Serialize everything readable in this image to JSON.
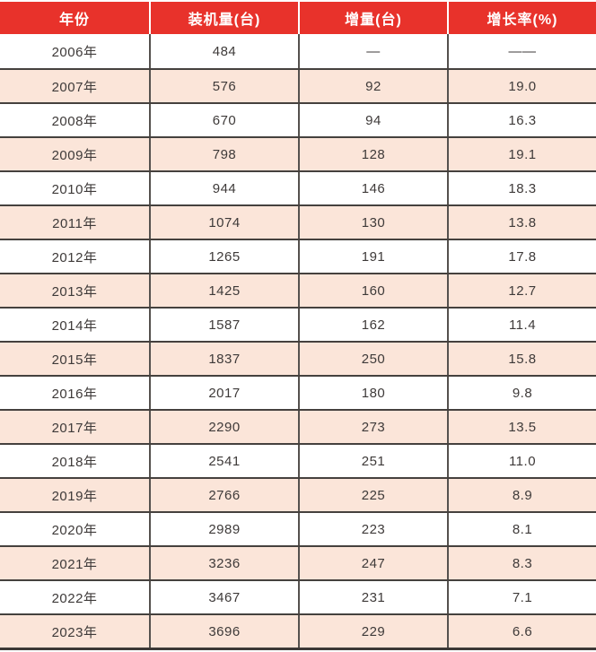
{
  "chart_data": {
    "type": "table",
    "columns": [
      "年份",
      "装机量(台)",
      "增量(台)",
      "增长率(%)"
    ],
    "rows": [
      [
        "2006年",
        "484",
        "—",
        "——"
      ],
      [
        "2007年",
        "576",
        "92",
        "19.0"
      ],
      [
        "2008年",
        "670",
        "94",
        "16.3"
      ],
      [
        "2009年",
        "798",
        "128",
        "19.1"
      ],
      [
        "2010年",
        "944",
        "146",
        "18.3"
      ],
      [
        "2011年",
        "1074",
        "130",
        "13.8"
      ],
      [
        "2012年",
        "1265",
        "191",
        "17.8"
      ],
      [
        "2013年",
        "1425",
        "160",
        "12.7"
      ],
      [
        "2014年",
        "1587",
        "162",
        "11.4"
      ],
      [
        "2015年",
        "1837",
        "250",
        "15.8"
      ],
      [
        "2016年",
        "2017",
        "180",
        "9.8"
      ],
      [
        "2017年",
        "2290",
        "273",
        "13.5"
      ],
      [
        "2018年",
        "2541",
        "251",
        "11.0"
      ],
      [
        "2019年",
        "2766",
        "225",
        "8.9"
      ],
      [
        "2020年",
        "2989",
        "223",
        "8.1"
      ],
      [
        "2021年",
        "3236",
        "247",
        "8.3"
      ],
      [
        "2022年",
        "3467",
        "231",
        "7.1"
      ],
      [
        "2023年",
        "3696",
        "229",
        "6.6"
      ]
    ],
    "categories": [
      "2006年",
      "2007年",
      "2008年",
      "2009年",
      "2010年",
      "2011年",
      "2012年",
      "2013年",
      "2014年",
      "2015年",
      "2016年",
      "2017年",
      "2018年",
      "2019年",
      "2020年",
      "2021年",
      "2022年",
      "2023年"
    ],
    "series": [
      {
        "name": "装机量(台)",
        "values": [
          484,
          576,
          670,
          798,
          944,
          1074,
          1265,
          1425,
          1587,
          1837,
          2017,
          2290,
          2541,
          2766,
          2989,
          3236,
          3467,
          3696
        ]
      },
      {
        "name": "增量(台)",
        "values": [
          null,
          92,
          94,
          128,
          146,
          130,
          191,
          160,
          162,
          250,
          180,
          273,
          251,
          225,
          223,
          247,
          231,
          229
        ]
      },
      {
        "name": "增长率(%)",
        "values": [
          null,
          19.0,
          16.3,
          19.1,
          18.3,
          13.8,
          17.8,
          12.7,
          11.4,
          15.8,
          9.8,
          13.5,
          11.0,
          8.9,
          8.1,
          8.3,
          7.1,
          6.6
        ]
      }
    ],
    "layout": {
      "header_position": "top",
      "alternating_rows": true
    },
    "colors": {
      "header_bg": "#e8322b",
      "header_text": "#ffffff",
      "row_bg": "#ffffff",
      "row_alt_bg": "#fbe5d9",
      "body_text": "#3e3a39",
      "row_divider": "#45413e",
      "column_divider": "#55514e",
      "bottom_rule": "#3c3836"
    }
  }
}
